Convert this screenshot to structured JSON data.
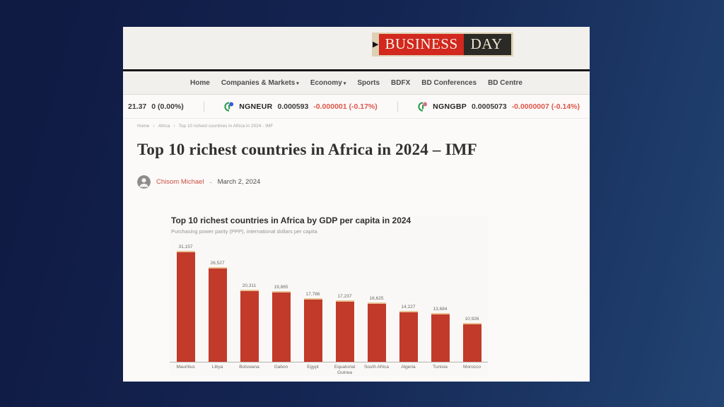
{
  "window": {
    "background_top_color": "#101b44",
    "background_bottom_color": "#234573"
  },
  "logo": {
    "arrow": "▶",
    "business": "BUSINESS",
    "day": "DAY",
    "red": "#d2281e",
    "dark": "#2b2a27"
  },
  "nav": {
    "caret": "▾",
    "items": [
      {
        "label": "Home",
        "dropdown": false
      },
      {
        "label": "Companies & Markets",
        "dropdown": true
      },
      {
        "label": "Economy",
        "dropdown": true
      },
      {
        "label": "Sports",
        "dropdown": false
      },
      {
        "label": "BDFX",
        "dropdown": false
      },
      {
        "label": "BD Conferences",
        "dropdown": false
      },
      {
        "label": "BD Centre",
        "dropdown": false
      }
    ]
  },
  "ticker": {
    "negative_color": "#e0554a",
    "left": {
      "price": "21.37",
      "change": "0 (0.00%)"
    },
    "pairs": [
      {
        "symbol": "NGNEUR",
        "value": "0.000593",
        "change": "-0.000001 (-0.17%)",
        "dot_color": "#3b5bd6"
      },
      {
        "symbol": "NGNGBP",
        "value": "0.0005073",
        "change": "-0.0000007 (-0.14%)",
        "dot_color": "#d6728f"
      }
    ]
  },
  "breadcrumb": {
    "separator": "›",
    "items": [
      "Home",
      "Africa",
      "Top 10 richest countries in Africa in 2024 - IMF"
    ]
  },
  "article": {
    "title": "Top 10 richest countries in Africa in 2024 – IMF",
    "author": "Chisom Michael",
    "separator": "-",
    "date": "March 2, 2024"
  },
  "chart_data": {
    "type": "bar",
    "title": "Top 10 richest countries in Africa by GDP per capita in 2024",
    "subtitle": "Purchasing power parity (PPP), international dollars per capita",
    "categories": [
      "Mauritius",
      "Libya",
      "Botswana",
      "Gabon",
      "Egypt",
      "Equatorial Guinea",
      "South Africa",
      "Algeria",
      "Tunisia",
      "Morocco"
    ],
    "values": [
      31157,
      26527,
      20311,
      19865,
      17786,
      17237,
      16625,
      14227,
      13684,
      10926
    ],
    "value_labels": [
      "31,157",
      "26,527",
      "20,311",
      "19,865",
      "17,786",
      "17,237",
      "16,625",
      "14,227",
      "13,684",
      "10,926"
    ],
    "bar_color": "#c23a2a",
    "bar_cap_color": "#e9c497",
    "ylim": [
      0,
      31157
    ],
    "grid": false,
    "legend": false
  }
}
